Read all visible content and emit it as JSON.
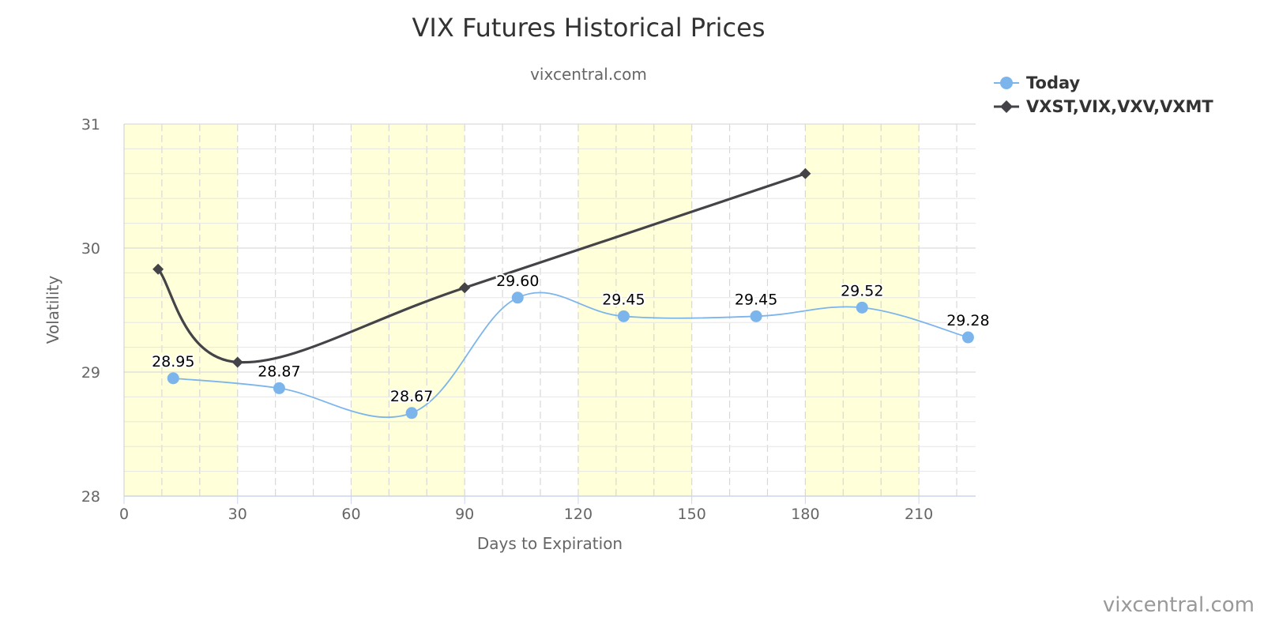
{
  "chart_data": {
    "type": "line",
    "title": "VIX Futures Historical Prices",
    "subtitle": "vixcentral.com",
    "xlabel": "Days to Expiration",
    "ylabel": "Volatility",
    "xlim": [
      0,
      225
    ],
    "ylim": [
      28,
      31
    ],
    "x_ticks": [
      "0",
      "30",
      "60",
      "90",
      "120",
      "150",
      "180",
      "210"
    ],
    "y_ticks": [
      "28",
      "29",
      "30",
      "31"
    ],
    "grid": true,
    "shaded_bands": [
      [
        0,
        30
      ],
      [
        60,
        90
      ],
      [
        120,
        150
      ],
      [
        180,
        210
      ]
    ],
    "band_color": "#ffffd9",
    "legend_position": "top-right",
    "series": [
      {
        "name": "Today",
        "color": "#7cb5ec",
        "marker": "circle",
        "points": [
          {
            "x": 13,
            "y": 28.95,
            "label": "28.95"
          },
          {
            "x": 41,
            "y": 28.87,
            "label": "28.87"
          },
          {
            "x": 76,
            "y": 28.67,
            "label": "28.67"
          },
          {
            "x": 104,
            "y": 29.6,
            "label": "29.60"
          },
          {
            "x": 132,
            "y": 29.45,
            "label": "29.45"
          },
          {
            "x": 167,
            "y": 29.45,
            "label": "29.45"
          },
          {
            "x": 195,
            "y": 29.52,
            "label": "29.52"
          },
          {
            "x": 223,
            "y": 29.28,
            "label": "29.28"
          }
        ]
      },
      {
        "name": "VXST,VIX,VXV,VXMT",
        "color": "#434348",
        "marker": "diamond",
        "points": [
          {
            "x": 9,
            "y": 29.83
          },
          {
            "x": 30,
            "y": 29.08
          },
          {
            "x": 90,
            "y": 29.68
          },
          {
            "x": 180,
            "y": 30.6
          }
        ]
      }
    ],
    "credit": "vixcentral.com"
  }
}
